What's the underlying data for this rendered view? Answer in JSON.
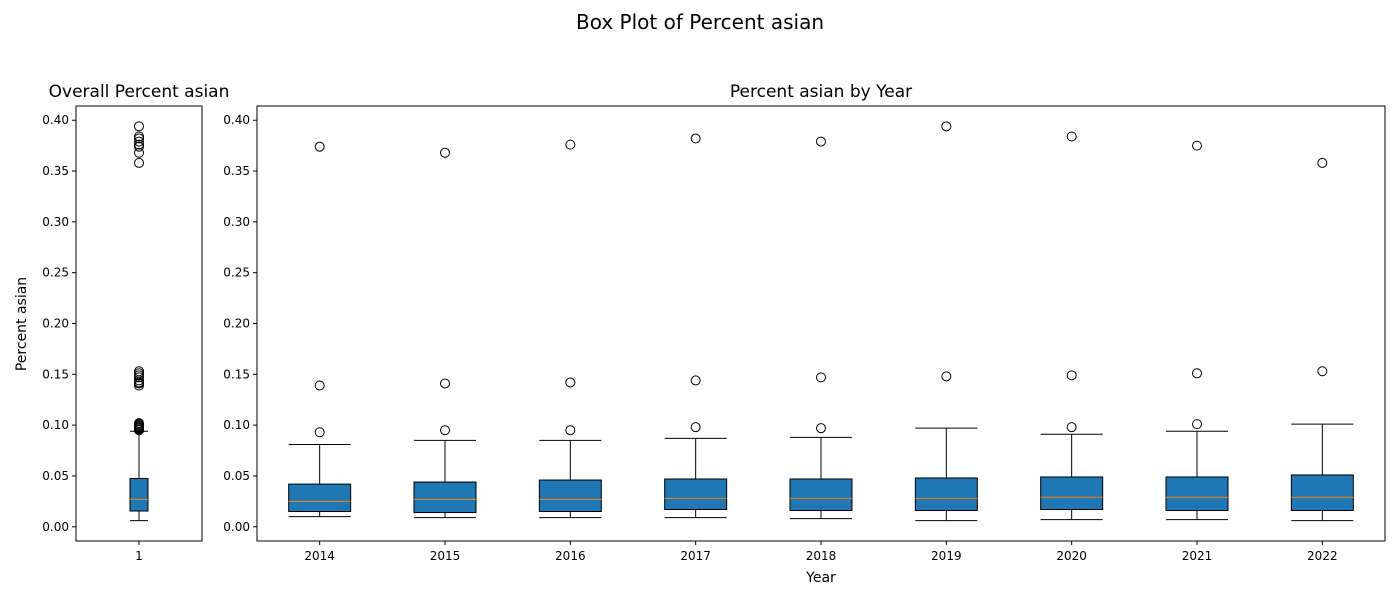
{
  "suptitle": "Box Plot of Percent asian",
  "chart_data": [
    {
      "type": "box",
      "title": "Overall Percent asian",
      "xlabel": "",
      "ylabel": "Percent asian",
      "categories": [
        "1"
      ],
      "ylim": [
        -0.014,
        0.414
      ],
      "yticks": [
        "0.00",
        "0.05",
        "0.10",
        "0.15",
        "0.20",
        "0.25",
        "0.30",
        "0.35",
        "0.40"
      ],
      "box_color": "#1f77b4",
      "median_color": "#ff7f0e",
      "boxes": [
        {
          "label": "1",
          "whislo": 0.006,
          "q1": 0.0155,
          "med": 0.027,
          "q3": 0.0475,
          "whishi": 0.094,
          "fliers": [
            0.095,
            0.096,
            0.097,
            0.098,
            0.099,
            0.1,
            0.101,
            0.102,
            0.139,
            0.141,
            0.142,
            0.144,
            0.147,
            0.149,
            0.151,
            0.153,
            0.358,
            0.368,
            0.374,
            0.376,
            0.379,
            0.382,
            0.384,
            0.394
          ]
        }
      ]
    },
    {
      "type": "box",
      "title": "Percent asian by Year",
      "xlabel": "Year",
      "ylabel": "",
      "categories": [
        "2014",
        "2015",
        "2016",
        "2017",
        "2018",
        "2019",
        "2020",
        "2021",
        "2022"
      ],
      "ylim": [
        -0.014,
        0.414
      ],
      "yticks": [
        "0.00",
        "0.05",
        "0.10",
        "0.15",
        "0.20",
        "0.25",
        "0.30",
        "0.35",
        "0.40"
      ],
      "box_color": "#1f77b4",
      "median_color": "#ff7f0e",
      "boxes": [
        {
          "label": "2014",
          "whislo": 0.01,
          "q1": 0.015,
          "med": 0.025,
          "q3": 0.042,
          "whishi": 0.081,
          "fliers": [
            0.093,
            0.139,
            0.374
          ]
        },
        {
          "label": "2015",
          "whislo": 0.009,
          "q1": 0.014,
          "med": 0.027,
          "q3": 0.044,
          "whishi": 0.085,
          "fliers": [
            0.095,
            0.141,
            0.368
          ]
        },
        {
          "label": "2016",
          "whislo": 0.009,
          "q1": 0.015,
          "med": 0.027,
          "q3": 0.046,
          "whishi": 0.085,
          "fliers": [
            0.095,
            0.142,
            0.376
          ]
        },
        {
          "label": "2017",
          "whislo": 0.009,
          "q1": 0.017,
          "med": 0.028,
          "q3": 0.047,
          "whishi": 0.087,
          "fliers": [
            0.098,
            0.144,
            0.382
          ]
        },
        {
          "label": "2018",
          "whislo": 0.008,
          "q1": 0.016,
          "med": 0.028,
          "q3": 0.047,
          "whishi": 0.088,
          "fliers": [
            0.097,
            0.147,
            0.379
          ]
        },
        {
          "label": "2019",
          "whislo": 0.006,
          "q1": 0.016,
          "med": 0.028,
          "q3": 0.048,
          "whishi": 0.097,
          "fliers": [
            0.148,
            0.394
          ]
        },
        {
          "label": "2020",
          "whislo": 0.007,
          "q1": 0.017,
          "med": 0.029,
          "q3": 0.049,
          "whishi": 0.091,
          "fliers": [
            0.098,
            0.149,
            0.384
          ]
        },
        {
          "label": "2021",
          "whislo": 0.007,
          "q1": 0.016,
          "med": 0.029,
          "q3": 0.049,
          "whishi": 0.094,
          "fliers": [
            0.101,
            0.151,
            0.375
          ]
        },
        {
          "label": "2022",
          "whislo": 0.006,
          "q1": 0.016,
          "med": 0.029,
          "q3": 0.051,
          "whishi": 0.101,
          "fliers": [
            0.153,
            0.358
          ]
        }
      ]
    }
  ]
}
